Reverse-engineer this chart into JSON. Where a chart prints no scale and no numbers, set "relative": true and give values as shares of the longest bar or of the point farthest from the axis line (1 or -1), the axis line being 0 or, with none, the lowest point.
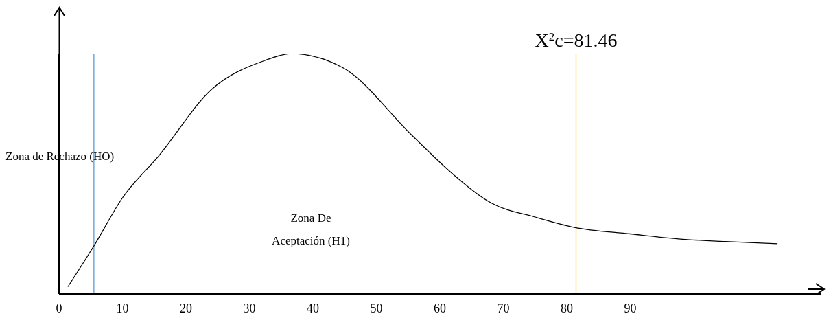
{
  "chart_data": {
    "type": "line",
    "relative": true,
    "x": [
      1.4,
      5.5,
      10,
      15.7,
      24,
      32.3,
      36.6,
      44.8,
      55.6,
      62,
      68.2,
      75,
      81.2,
      90,
      97.6,
      105,
      113.2
    ],
    "series": [
      {
        "color": "#000000",
        "values": [
          0.03,
          0.2,
          0.4,
          0.574,
          0.85,
          0.97,
          1,
          0.94,
          0.66,
          0.5,
          0.377,
          0.32,
          0.277,
          0.25,
          0.229,
          0.218,
          0.209
        ]
      }
    ],
    "xlim": [
      0,
      120
    ],
    "xticks": [
      0,
      10,
      20,
      30,
      40,
      50,
      60,
      70,
      80,
      90
    ],
    "ref_lines": [
      {
        "axis": "x",
        "value": 5.5,
        "color": "#5b9bd5"
      },
      {
        "axis": "x",
        "value": 81.46,
        "label": "X$^{2}$c=81.46",
        "color": "#ffc000"
      }
    ],
    "annotations": [
      "Zona de Rechazo (HO)",
      "Zona De Aceptación (H1)"
    ],
    "grid": false,
    "legend": false,
    "marker": "none",
    "line_style": "solid"
  }
}
